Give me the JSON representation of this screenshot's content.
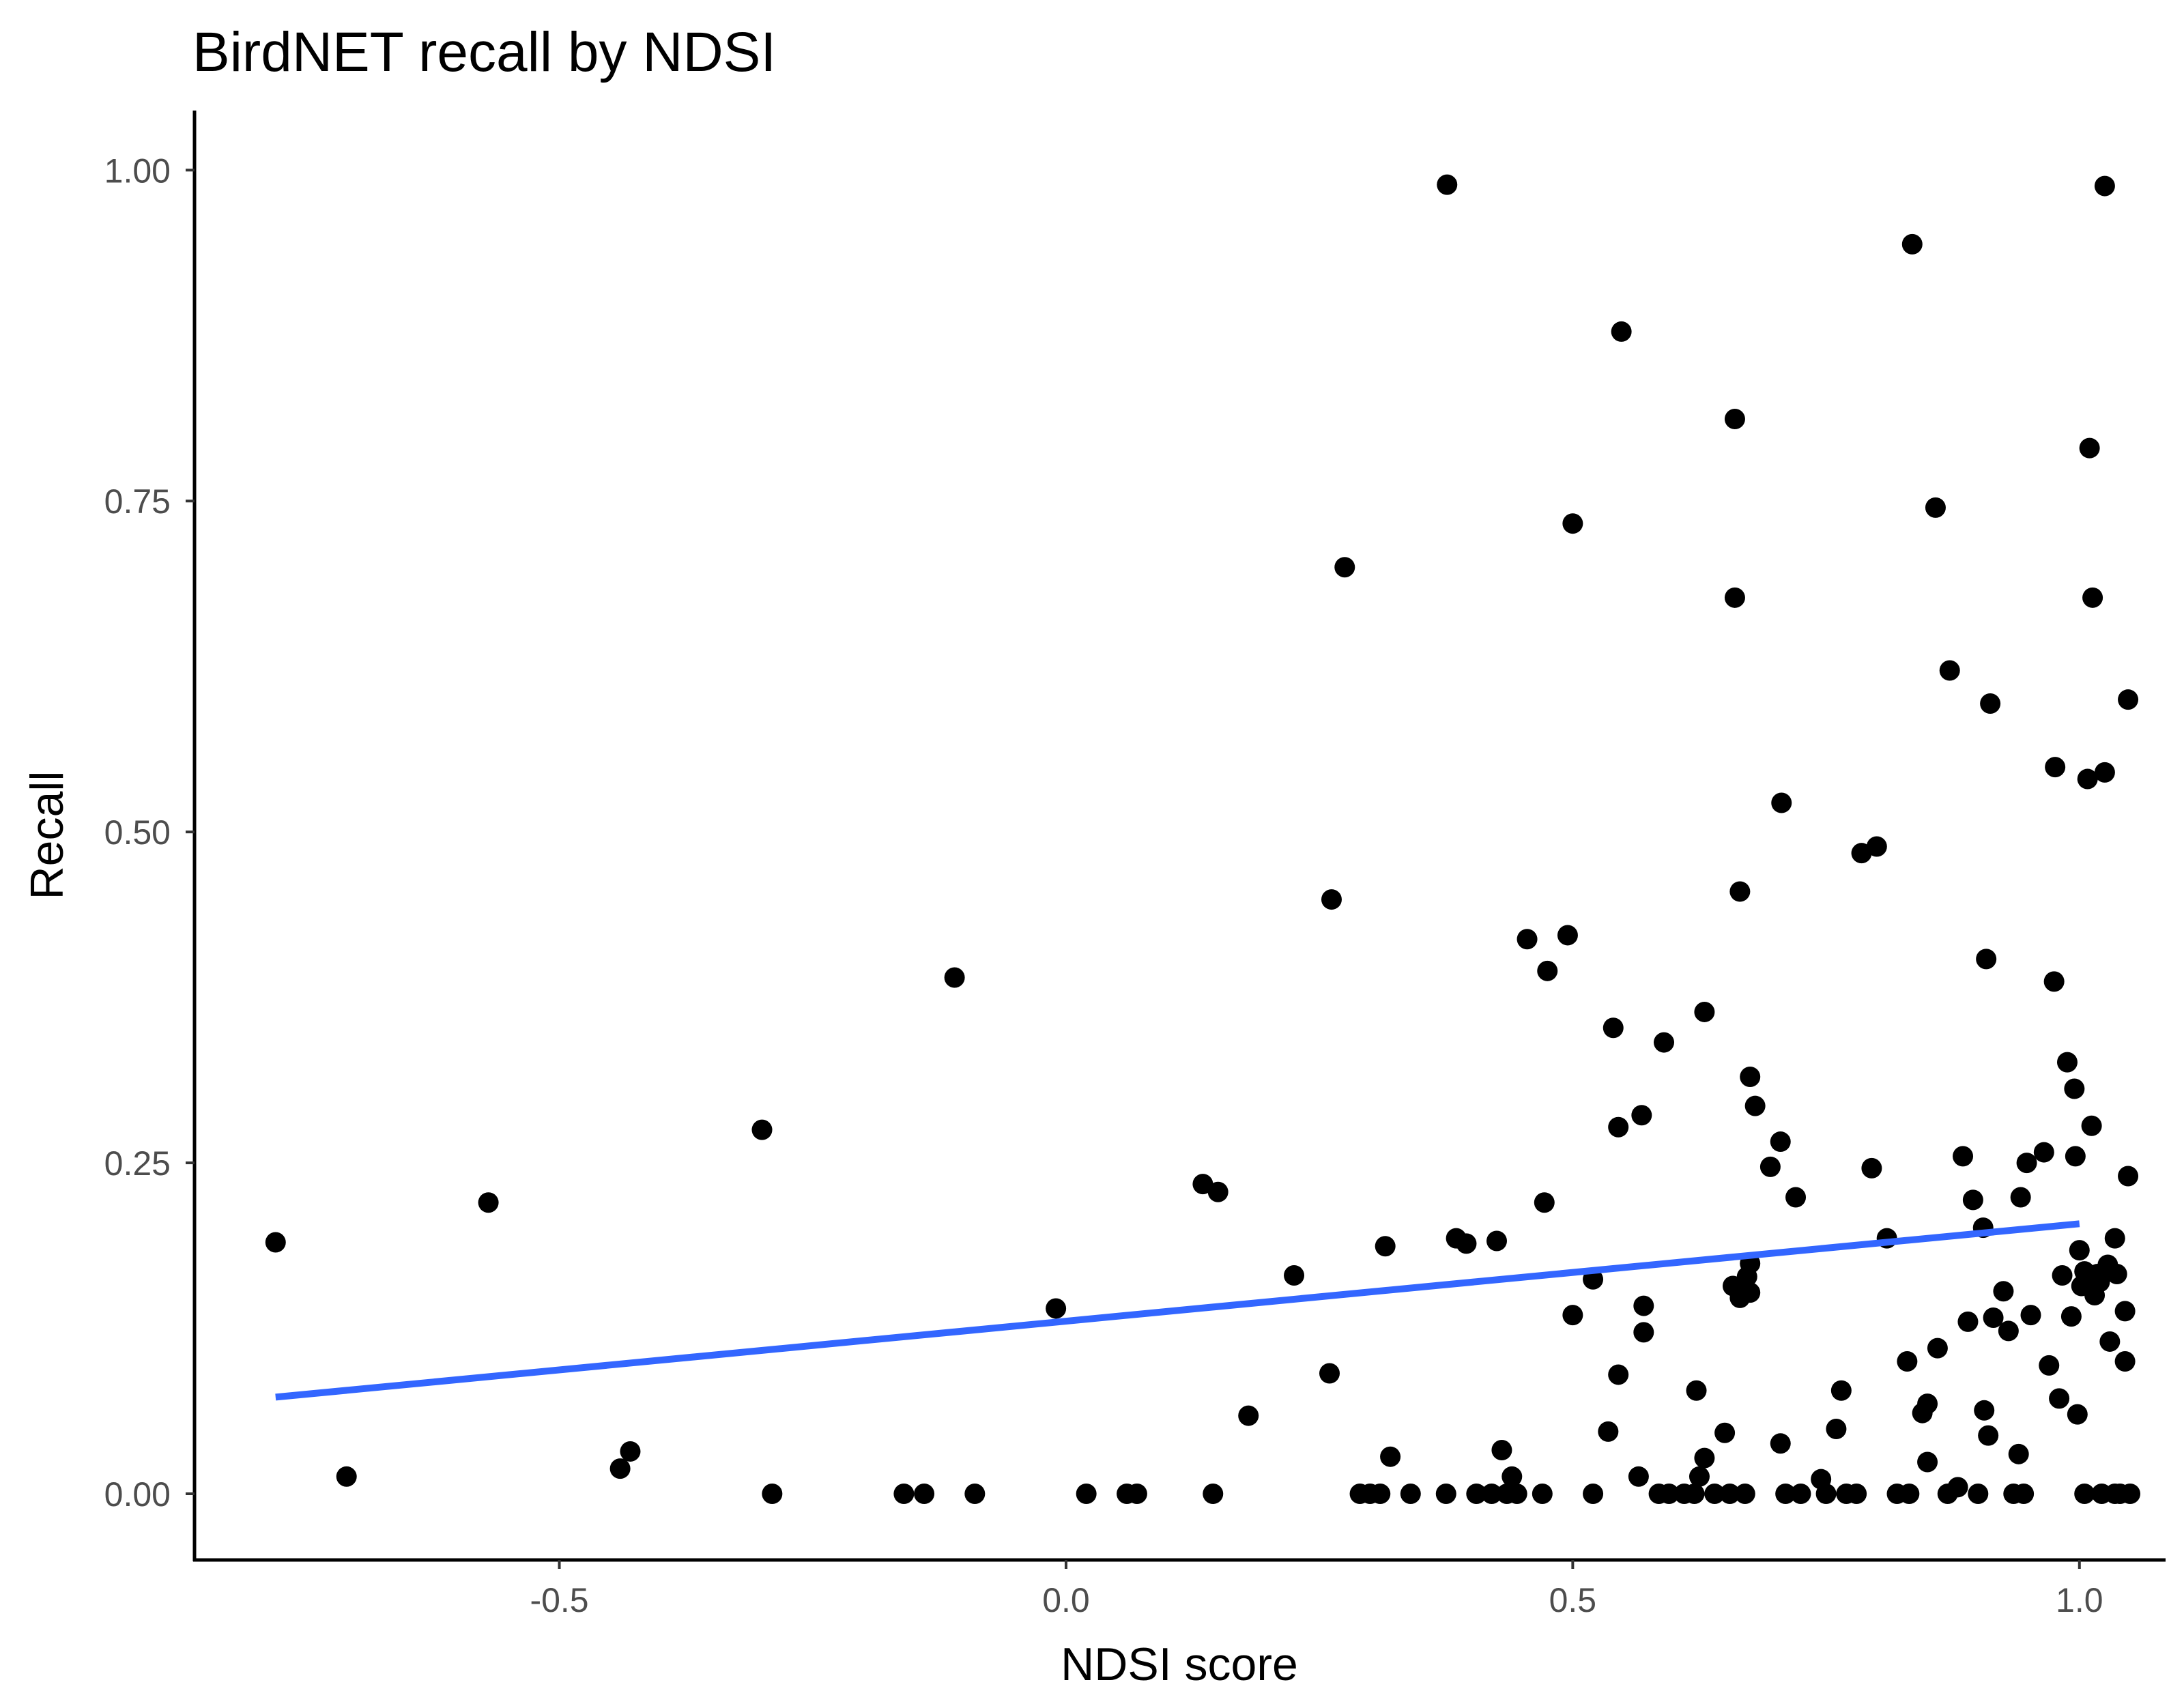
{
  "chart_data": {
    "type": "scatter",
    "title": "BirdNET recall by NDSI",
    "xlabel": "NDSI score",
    "ylabel": "Recall",
    "xlim": [
      -0.86,
      1.085
    ],
    "ylim": [
      -0.05,
      1.045
    ],
    "x_ticks": [
      -0.5,
      0.0,
      0.5,
      1.0
    ],
    "x_tick_labels": [
      "-0.5",
      "0.0",
      "0.5",
      "1.0"
    ],
    "y_ticks": [
      0.0,
      0.25,
      0.5,
      0.75,
      1.0
    ],
    "y_tick_labels": [
      "0.00",
      "0.25",
      "0.50",
      "0.75",
      "1.00"
    ],
    "grid": false,
    "legend": "none",
    "point_color": "#000000",
    "trend_line": {
      "color": "#3366ff",
      "x": [
        -0.78,
        1.0
      ],
      "y": [
        0.073,
        0.204
      ]
    },
    "points": [
      [
        -0.78,
        0.19
      ],
      [
        -0.71,
        0.013
      ],
      [
        -0.57,
        0.22
      ],
      [
        -0.44,
        0.019
      ],
      [
        -0.43,
        0.032
      ],
      [
        -0.3,
        0.275
      ],
      [
        -0.29,
        0.0
      ],
      [
        -0.16,
        0.0
      ],
      [
        -0.14,
        0.0
      ],
      [
        -0.11,
        0.39
      ],
      [
        -0.09,
        0.0
      ],
      [
        -0.01,
        0.14
      ],
      [
        0.02,
        0.0
      ],
      [
        0.06,
        0.0
      ],
      [
        0.07,
        0.0
      ],
      [
        0.135,
        0.234
      ],
      [
        0.145,
        0.0
      ],
      [
        0.15,
        0.228
      ],
      [
        0.18,
        0.059
      ],
      [
        0.225,
        0.165
      ],
      [
        0.26,
        0.091
      ],
      [
        0.262,
        0.449
      ],
      [
        0.275,
        0.7
      ],
      [
        0.29,
        0.0
      ],
      [
        0.3,
        0.0
      ],
      [
        0.31,
        0.0
      ],
      [
        0.315,
        0.187
      ],
      [
        0.32,
        0.028
      ],
      [
        0.34,
        0.0
      ],
      [
        0.375,
        0.0
      ],
      [
        0.376,
        0.989
      ],
      [
        0.385,
        0.193
      ],
      [
        0.395,
        0.189
      ],
      [
        0.405,
        0.0
      ],
      [
        0.42,
        0.0
      ],
      [
        0.425,
        0.191
      ],
      [
        0.43,
        0.033
      ],
      [
        0.435,
        0.0
      ],
      [
        0.44,
        0.013
      ],
      [
        0.445,
        0.0
      ],
      [
        0.455,
        0.419
      ],
      [
        0.47,
        0.0
      ],
      [
        0.472,
        0.22
      ],
      [
        0.475,
        0.395
      ],
      [
        0.495,
        0.422
      ],
      [
        0.5,
        0.135
      ],
      [
        0.5,
        0.733
      ],
      [
        0.52,
        0.162
      ],
      [
        0.52,
        0.0
      ],
      [
        0.535,
        0.047
      ],
      [
        0.54,
        0.352
      ],
      [
        0.545,
        0.277
      ],
      [
        0.545,
        0.09
      ],
      [
        0.548,
        0.878
      ],
      [
        0.565,
        0.013
      ],
      [
        0.568,
        0.286
      ],
      [
        0.57,
        0.122
      ],
      [
        0.57,
        0.142
      ],
      [
        0.585,
        0.0
      ],
      [
        0.59,
        0.341
      ],
      [
        0.595,
        0.0
      ],
      [
        0.61,
        0.0
      ],
      [
        0.62,
        0.0
      ],
      [
        0.622,
        0.078
      ],
      [
        0.625,
        0.013
      ],
      [
        0.63,
        0.027
      ],
      [
        0.63,
        0.364
      ],
      [
        0.64,
        0.0
      ],
      [
        0.65,
        0.046
      ],
      [
        0.655,
        0.0
      ],
      [
        0.658,
        0.157
      ],
      [
        0.66,
        0.677
      ],
      [
        0.66,
        0.812
      ],
      [
        0.665,
        0.148
      ],
      [
        0.665,
        0.455
      ],
      [
        0.67,
        0.0
      ],
      [
        0.672,
        0.164
      ],
      [
        0.675,
        0.152
      ],
      [
        0.675,
        0.174
      ],
      [
        0.675,
        0.315
      ],
      [
        0.68,
        0.293
      ],
      [
        0.695,
        0.247
      ],
      [
        0.705,
        0.038
      ],
      [
        0.705,
        0.266
      ],
      [
        0.706,
        0.522
      ],
      [
        0.71,
        0.0
      ],
      [
        0.72,
        0.224
      ],
      [
        0.725,
        0.0
      ],
      [
        0.745,
        0.011
      ],
      [
        0.75,
        0.0
      ],
      [
        0.76,
        0.049
      ],
      [
        0.765,
        0.078
      ],
      [
        0.77,
        0.0
      ],
      [
        0.78,
        0.0
      ],
      [
        0.785,
        0.484
      ],
      [
        0.795,
        0.246
      ],
      [
        0.8,
        0.489
      ],
      [
        0.81,
        0.193
      ],
      [
        0.82,
        0.0
      ],
      [
        0.83,
        0.1
      ],
      [
        0.832,
        0.0
      ],
      [
        0.835,
        0.944
      ],
      [
        0.845,
        0.061
      ],
      [
        0.85,
        0.068
      ],
      [
        0.85,
        0.024
      ],
      [
        0.858,
        0.745
      ],
      [
        0.86,
        0.11
      ],
      [
        0.87,
        0.0
      ],
      [
        0.872,
        0.622
      ],
      [
        0.88,
        0.005
      ],
      [
        0.885,
        0.255
      ],
      [
        0.89,
        0.13
      ],
      [
        0.895,
        0.222
      ],
      [
        0.9,
        0.0
      ],
      [
        0.905,
        0.201
      ],
      [
        0.906,
        0.063
      ],
      [
        0.908,
        0.404
      ],
      [
        0.91,
        0.044
      ],
      [
        0.912,
        0.597
      ],
      [
        0.915,
        0.133
      ],
      [
        0.925,
        0.153
      ],
      [
        0.93,
        0.123
      ],
      [
        0.935,
        0.0
      ],
      [
        0.94,
        0.03
      ],
      [
        0.942,
        0.224
      ],
      [
        0.945,
        0.0
      ],
      [
        0.948,
        0.25
      ],
      [
        0.952,
        0.135
      ],
      [
        0.965,
        0.258
      ],
      [
        0.97,
        0.097
      ],
      [
        0.975,
        0.387
      ],
      [
        0.976,
        0.549
      ],
      [
        0.98,
        0.072
      ],
      [
        0.983,
        0.165
      ],
      [
        0.988,
        0.326
      ],
      [
        0.992,
        0.134
      ],
      [
        0.995,
        0.306
      ],
      [
        0.996,
        0.255
      ],
      [
        0.998,
        0.06
      ],
      [
        1.0,
        0.184
      ],
      [
        1.002,
        0.157
      ],
      [
        1.005,
        0.168
      ],
      [
        1.005,
        0.0
      ],
      [
        1.008,
        0.54
      ],
      [
        1.01,
        0.79
      ],
      [
        1.012,
        0.278
      ],
      [
        1.013,
        0.677
      ],
      [
        1.015,
        0.15
      ],
      [
        1.018,
        0.166
      ],
      [
        1.02,
        0.16
      ],
      [
        1.022,
        0.0
      ],
      [
        1.025,
        0.545
      ],
      [
        1.025,
        0.988
      ],
      [
        1.028,
        0.173
      ],
      [
        1.03,
        0.168
      ],
      [
        1.03,
        0.115
      ],
      [
        1.035,
        0.193
      ],
      [
        1.035,
        0.0
      ],
      [
        1.037,
        0.166
      ],
      [
        1.04,
        0.0
      ],
      [
        1.045,
        0.138
      ],
      [
        1.045,
        0.1
      ],
      [
        1.048,
        0.24
      ],
      [
        1.048,
        0.6
      ],
      [
        1.05,
        0.0
      ]
    ]
  }
}
